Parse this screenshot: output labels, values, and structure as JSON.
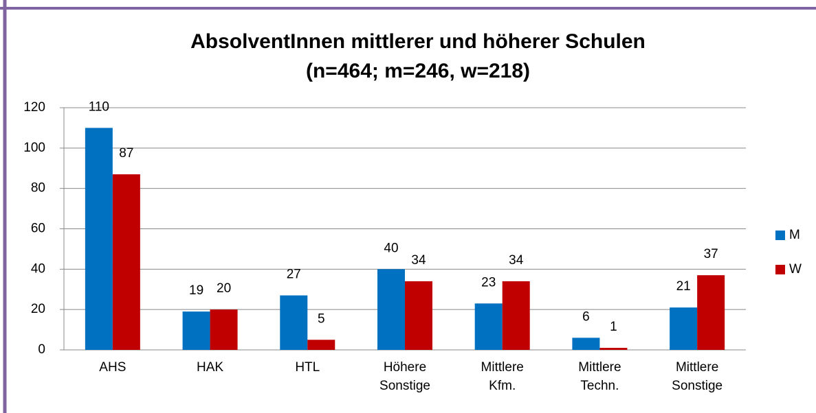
{
  "chart_data": {
    "type": "bar",
    "title": "AbsolventInnen mittlerer und höherer Schulen",
    "subtitle": "(n=464; m=246, w=218)",
    "categories": [
      "AHS",
      "HAK",
      "HTL",
      "Höhere Sonstige",
      "Mittlere Kfm.",
      "Mittlere Techn.",
      "Mittlere Sonstige"
    ],
    "series": [
      {
        "name": "M",
        "color": "#0070c0",
        "values": [
          110,
          19,
          27,
          40,
          23,
          6,
          21
        ]
      },
      {
        "name": "W",
        "color": "#c00000",
        "values": [
          87,
          20,
          5,
          34,
          34,
          1,
          37
        ]
      }
    ],
    "ylim": [
      0,
      120
    ],
    "yticks": [
      0,
      20,
      40,
      60,
      80,
      100,
      120
    ],
    "grid": true,
    "legend": "right"
  }
}
